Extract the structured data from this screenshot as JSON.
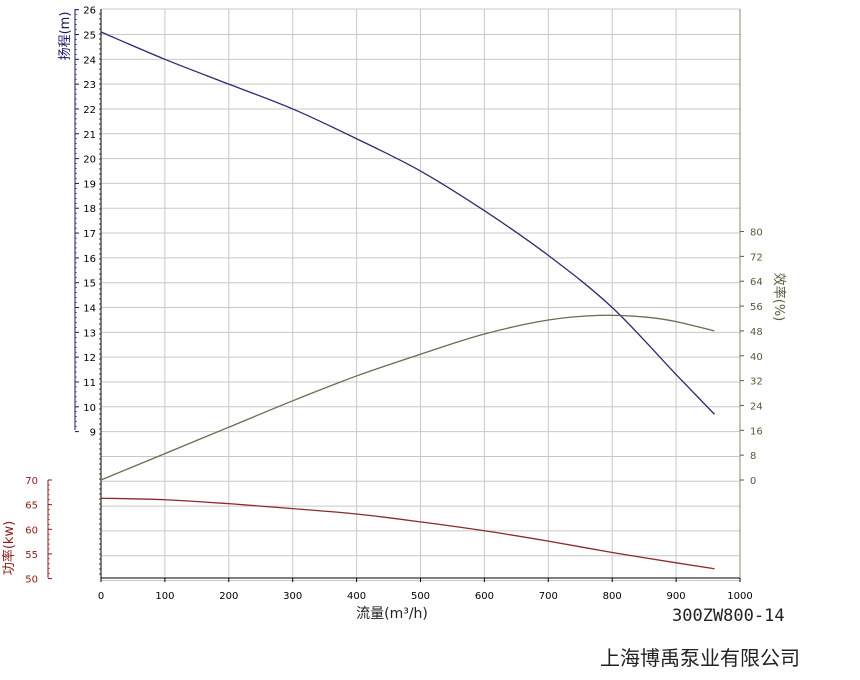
{
  "chart_data": {
    "type": "line",
    "title": "",
    "xlabel": "流量(m³/h)",
    "xlim": [
      0,
      1000
    ],
    "x_ticks": [
      0,
      100,
      200,
      300,
      400,
      500,
      600,
      700,
      800,
      900,
      1000
    ],
    "grid": true,
    "axes": {
      "head": {
        "label": "扬程(m)",
        "ticks": [
          9,
          10,
          11,
          12,
          13,
          14,
          15,
          16,
          17,
          18,
          19,
          20,
          21,
          22,
          23,
          24,
          25,
          26
        ],
        "color": "#1a1a5e"
      },
      "efficiency": {
        "label": "效率(%)",
        "ticks": [
          0,
          8,
          16,
          24,
          32,
          40,
          48,
          56,
          64,
          72,
          80
        ],
        "color": "#5a5a3c"
      },
      "power": {
        "label": "功率(kw)",
        "ticks": [
          50,
          55,
          60,
          65,
          70
        ],
        "color": "#8b1a1a"
      }
    },
    "series": [
      {
        "axis": "head",
        "color": "#2b2b6f",
        "x": [
          0,
          100,
          200,
          300,
          400,
          500,
          600,
          700,
          800,
          900,
          960
        ],
        "y": [
          25.1,
          24.0,
          23.0,
          22.0,
          20.8,
          19.5,
          17.9,
          16.1,
          14.0,
          11.3,
          9.7
        ]
      },
      {
        "axis": "efficiency",
        "color": "#6b6b4f",
        "x": [
          0,
          100,
          200,
          300,
          400,
          500,
          600,
          700,
          780,
          850,
          900,
          960
        ],
        "y": [
          0,
          8.5,
          17,
          25.5,
          33.5,
          40.5,
          47,
          51.5,
          53,
          52.5,
          51,
          48
        ]
      },
      {
        "axis": "power",
        "color": "#8b2a2a",
        "x": [
          0,
          100,
          200,
          300,
          400,
          500,
          600,
          700,
          800,
          900,
          960
        ],
        "y": [
          66.3,
          66.0,
          65.2,
          64.2,
          63.1,
          61.5,
          59.7,
          57.6,
          55.3,
          53.2,
          52.0
        ]
      }
    ]
  },
  "footer": {
    "model": "300ZW800-14",
    "company": "上海博禹泵业有限公司"
  }
}
